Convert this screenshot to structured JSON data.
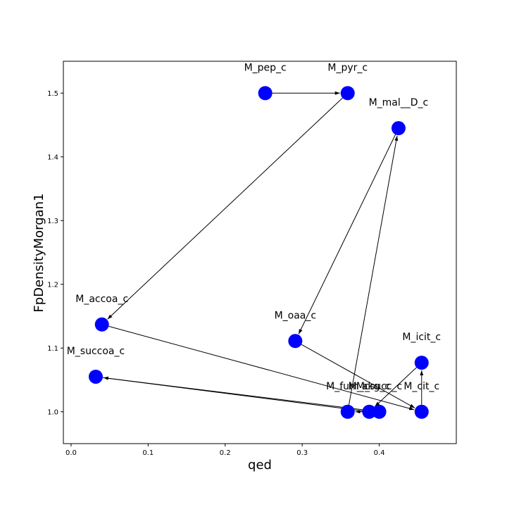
{
  "chart_data": {
    "type": "scatter",
    "xlabel": "qed",
    "ylabel": "FpDensityMorgan1",
    "xlim": [
      -0.01,
      0.5
    ],
    "ylim": [
      0.95,
      1.55
    ],
    "xticks": [
      "0.0",
      "0.1",
      "0.2",
      "0.3",
      "0.4"
    ],
    "xtick_values": [
      0.0,
      0.1,
      0.2,
      0.3,
      0.4
    ],
    "yticks": [
      "1.0",
      "1.1",
      "1.2",
      "1.3",
      "1.4",
      "1.5"
    ],
    "ytick_values": [
      1.0,
      1.1,
      1.2,
      1.3,
      1.4,
      1.5
    ],
    "grid": false,
    "node_color": "#0000ff",
    "edge_color": "#000000",
    "nodes": [
      {
        "id": "M_pep_c",
        "x": 0.252,
        "y": 1.5
      },
      {
        "id": "M_pyr_c",
        "x": 0.359,
        "y": 1.5
      },
      {
        "id": "M_mal__D_c",
        "x": 0.425,
        "y": 1.445
      },
      {
        "id": "M_accoa_c",
        "x": 0.04,
        "y": 1.137
      },
      {
        "id": "M_oaa_c",
        "x": 0.291,
        "y": 1.111
      },
      {
        "id": "M_icit_c",
        "x": 0.455,
        "y": 1.077
      },
      {
        "id": "M_succoa_c",
        "x": 0.032,
        "y": 1.055
      },
      {
        "id": "M_fum_c",
        "x": 0.359,
        "y": 1.0
      },
      {
        "id": "M_akg_c",
        "x": 0.387,
        "y": 1.0
      },
      {
        "id": "M_succ_c",
        "x": 0.4,
        "y": 1.0
      },
      {
        "id": "M_cit_c",
        "x": 0.455,
        "y": 1.0
      }
    ],
    "edges": [
      [
        "M_pep_c",
        "M_pyr_c"
      ],
      [
        "M_pyr_c",
        "M_accoa_c"
      ],
      [
        "M_accoa_c",
        "M_cit_c"
      ],
      [
        "M_oaa_c",
        "M_cit_c"
      ],
      [
        "M_cit_c",
        "M_icit_c"
      ],
      [
        "M_icit_c",
        "M_akg_c"
      ],
      [
        "M_akg_c",
        "M_succoa_c"
      ],
      [
        "M_succoa_c",
        "M_succ_c"
      ],
      [
        "M_succ_c",
        "M_fum_c"
      ],
      [
        "M_fum_c",
        "M_mal__D_c"
      ],
      [
        "M_mal__D_c",
        "M_oaa_c"
      ]
    ]
  }
}
